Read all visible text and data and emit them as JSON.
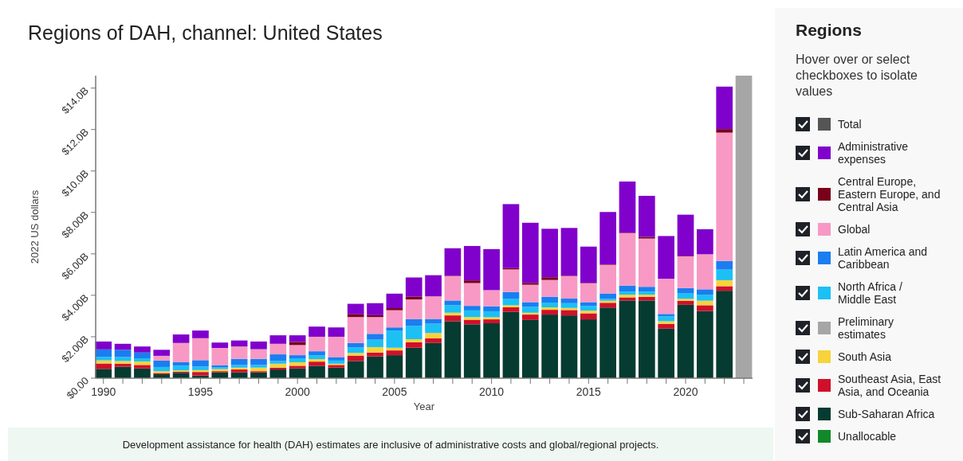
{
  "chart_data": {
    "type": "bar",
    "stacked": true,
    "title": "Regions of DAH, channel: United States",
    "xlabel": "Year",
    "ylabel": "2022 US dollars",
    "legend_title": "Regions",
    "legend": "right",
    "annotations": [
      "Hover over or select checkboxes to isolate values",
      "Development assistance for health (DAH) estimates are inclusive of administrative costs and global/regional projects."
    ],
    "x": [
      1990,
      1991,
      1992,
      1993,
      1994,
      1995,
      1996,
      1997,
      1998,
      1999,
      2000,
      2001,
      2002,
      2003,
      2004,
      2005,
      2006,
      2007,
      2008,
      2009,
      2010,
      2011,
      2012,
      2013,
      2014,
      2015,
      2016,
      2017,
      2018,
      2019,
      2020,
      2021,
      2022,
      2023
    ],
    "xlim": [
      1989.6,
      2023.45
    ],
    "xticks": [
      1990,
      {
        "value": 1991,
        "label": null
      },
      {
        "value": 1992,
        "label": null
      },
      {
        "value": 1993,
        "label": null
      },
      {
        "value": 1994,
        "label": null
      },
      1995,
      {
        "value": 1996,
        "label": null
      },
      {
        "value": 1997,
        "label": null
      },
      {
        "value": 1998,
        "label": null
      },
      {
        "value": 1999,
        "label": null
      },
      2000,
      {
        "value": 2001,
        "label": null
      },
      {
        "value": 2002,
        "label": null
      },
      {
        "value": 2003,
        "label": null
      },
      {
        "value": 2004,
        "label": null
      },
      2005,
      {
        "value": 2006,
        "label": null
      },
      {
        "value": 2007,
        "label": null
      },
      {
        "value": 2008,
        "label": null
      },
      {
        "value": 2009,
        "label": null
      },
      2010,
      {
        "value": 2011,
        "label": null
      },
      {
        "value": 2012,
        "label": null
      },
      {
        "value": 2013,
        "label": null
      },
      {
        "value": 2014,
        "label": null
      },
      2015,
      {
        "value": 2016,
        "label": null
      },
      {
        "value": 2017,
        "label": null
      },
      {
        "value": 2018,
        "label": null
      },
      {
        "value": 2019,
        "label": null
      },
      2020,
      {
        "value": 2021,
        "label": null
      },
      {
        "value": 2022,
        "label": null
      },
      {
        "value": 2023,
        "label": null
      }
    ],
    "ylim": [
      0,
      14.6
    ],
    "yticks": [
      {
        "value": 0,
        "label": "$0.00"
      },
      {
        "value": 2,
        "label": "$2.00B"
      },
      {
        "value": 4,
        "label": "$4.00B"
      },
      {
        "value": 6,
        "label": "$6.00B"
      },
      {
        "value": 8,
        "label": "$8.00B"
      },
      {
        "value": 10,
        "label": "$10.0B"
      },
      {
        "value": 12,
        "label": "$12.0B"
      },
      {
        "value": 14,
        "label": "$14.0B"
      }
    ],
    "series": [
      {
        "name": "Unallocable",
        "color": "#12882a",
        "values": [
          null,
          null,
          null,
          null,
          null,
          null,
          null,
          null,
          null,
          null,
          null,
          null,
          null,
          null,
          null,
          null,
          null,
          null,
          null,
          null,
          null,
          null,
          null,
          null,
          null,
          null,
          null,
          null,
          null,
          null,
          null,
          null,
          null,
          null
        ]
      },
      {
        "name": "Sub-Saharan Africa",
        "color": "#053b30",
        "values": [
          0.45,
          0.55,
          0.47,
          0.19,
          0.26,
          0.13,
          0.28,
          0.28,
          0.28,
          0.42,
          0.47,
          0.6,
          0.51,
          0.83,
          1.05,
          1.11,
          1.47,
          1.7,
          2.75,
          2.6,
          2.65,
          3.2,
          2.81,
          3.07,
          3.03,
          2.84,
          3.41,
          3.75,
          3.75,
          2.39,
          3.54,
          3.24,
          4.22,
          null
        ]
      },
      {
        "name": "Southeast Asia, East Asia, and Oceania",
        "color": "#d0102a",
        "values": [
          0.26,
          0.15,
          0.17,
          0.06,
          0.06,
          0.17,
          0.06,
          0.14,
          0.06,
          0.09,
          0.13,
          0.2,
          0.13,
          0.26,
          0.19,
          0.23,
          0.26,
          0.22,
          0.28,
          0.22,
          0.19,
          0.22,
          0.26,
          0.23,
          0.26,
          0.29,
          0.23,
          0.15,
          0.18,
          0.23,
          0.2,
          0.28,
          0.22,
          null
        ]
      },
      {
        "name": "South Asia",
        "color": "#f7d33c",
        "values": [
          0.15,
          0.13,
          0.17,
          0.09,
          0.06,
          0.09,
          0.1,
          0.09,
          0.17,
          0.19,
          0.17,
          0.12,
          0.06,
          0.13,
          0.26,
          0.13,
          0.15,
          0.26,
          0.13,
          0.13,
          0.1,
          0.1,
          0.09,
          0.12,
          0.1,
          0.13,
          0.1,
          0.13,
          0.1,
          0.13,
          0.09,
          0.22,
          0.29,
          null
        ]
      },
      {
        "name": "Preliminary estimates",
        "color": "#a6a6a6",
        "values": [
          null,
          null,
          null,
          null,
          null,
          null,
          null,
          null,
          null,
          null,
          null,
          null,
          null,
          null,
          null,
          null,
          null,
          null,
          null,
          null,
          null,
          null,
          null,
          null,
          null,
          null,
          null,
          null,
          null,
          null,
          null,
          null,
          null,
          14.6
        ]
      },
      {
        "name": "North Africa / Middle East",
        "color": "#1cc0f5",
        "values": [
          0.17,
          0.19,
          0.15,
          0.2,
          0.22,
          0.17,
          0.09,
          0.13,
          0.13,
          0.13,
          0.19,
          0.19,
          0.15,
          0.26,
          0.36,
          0.83,
          0.64,
          0.45,
          0.36,
          0.32,
          0.29,
          0.32,
          0.29,
          0.23,
          0.23,
          0.23,
          0.09,
          0.15,
          0.15,
          0.23,
          0.26,
          0.29,
          0.51,
          null
        ]
      },
      {
        "name": "Latin America and Caribbean",
        "color": "#1a7ef0",
        "values": [
          0.36,
          0.35,
          0.28,
          0.31,
          0.17,
          0.31,
          0.1,
          0.29,
          0.29,
          0.32,
          0.15,
          0.19,
          0.17,
          0.22,
          0.28,
          0.15,
          0.33,
          0.23,
          0.23,
          0.22,
          0.24,
          0.32,
          0.22,
          0.28,
          0.22,
          0.18,
          0.26,
          0.29,
          0.23,
          0.12,
          0.26,
          0.26,
          0.42,
          null
        ]
      },
      {
        "name": "Global",
        "color": "#f799c4",
        "values": [
          null,
          null,
          null,
          0.23,
          0.93,
          1.06,
          0.83,
          0.6,
          0.47,
          0.51,
          0.49,
          0.7,
          0.98,
          1.25,
          0.81,
          0.83,
          0.95,
          1.09,
          1.18,
          1.1,
          0.78,
          1.09,
          0.84,
          0.81,
          1.09,
          0.91,
          1.38,
          2.53,
          2.33,
          1.7,
          1.53,
          1.69,
          6.19,
          null
        ]
      },
      {
        "name": "Central Europe, Eastern Europe, and Central Asia",
        "color": "#7a0019",
        "values": [
          null,
          null,
          null,
          null,
          null,
          null,
          null,
          null,
          null,
          null,
          0.15,
          null,
          null,
          0.13,
          0.09,
          0.1,
          0.13,
          null,
          0.02,
          0.13,
          null,
          0.06,
          0.09,
          0.13,
          0.02,
          0.02,
          0.02,
          0.02,
          0.08,
          null,
          0.03,
          null,
          0.17,
          null
        ]
      },
      {
        "name": "Administrative expenses",
        "color": "#8000cc",
        "values": [
          0.38,
          0.29,
          0.29,
          0.29,
          0.41,
          0.37,
          0.26,
          0.29,
          0.37,
          0.41,
          0.32,
          0.49,
          0.45,
          0.51,
          0.58,
          0.7,
          0.93,
          1.02,
          1.32,
          1.66,
          1.98,
          3.09,
          2.9,
          2.34,
          2.3,
          1.75,
          2.53,
          2.47,
          1.98,
          2.06,
          1.98,
          1.21,
          2.05,
          null
        ]
      },
      {
        "name": "Total",
        "color": "#555555",
        "values": [
          null,
          null,
          null,
          null,
          null,
          null,
          null,
          null,
          null,
          null,
          null,
          null,
          null,
          null,
          null,
          null,
          null,
          null,
          null,
          null,
          null,
          null,
          null,
          null,
          null,
          null,
          null,
          null,
          null,
          null,
          null,
          null,
          null,
          null
        ]
      }
    ]
  }
}
